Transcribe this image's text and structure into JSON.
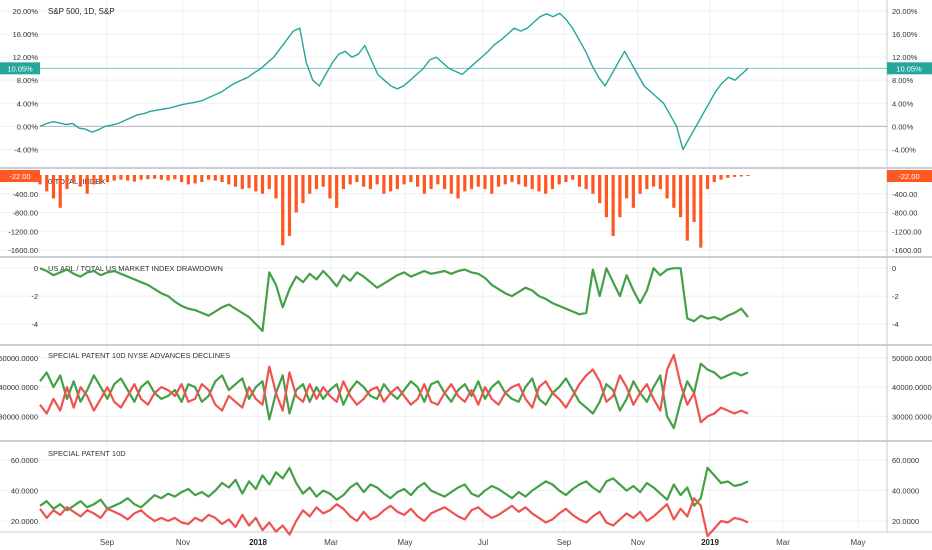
{
  "chart_data": [
    {
      "type": "line",
      "title": "S&P 500, 1D, S&P",
      "y_ticks": [
        "-4.00%",
        "0.00%",
        "4.00%",
        "8.00%",
        "12.00%",
        "16.00%",
        "20.00%"
      ],
      "last_value_tag": "10.05%",
      "ylim": [
        -6,
        20.5
      ],
      "zero_baseline": true,
      "series": [
        {
          "color": "#26a69a",
          "values": [
            0,
            0.5,
            0.8,
            0.6,
            0.3,
            0.5,
            -0.3,
            -0.5,
            -1,
            -0.6,
            0,
            0.2,
            0.5,
            1,
            1.5,
            2,
            2.2,
            2.6,
            2.8,
            3,
            3.2,
            3.5,
            3.8,
            4,
            4.2,
            4.5,
            5,
            5.5,
            6,
            6.8,
            7.5,
            8,
            8.5,
            9.3,
            10,
            11,
            12,
            13.5,
            15,
            16.5,
            17,
            11,
            8,
            7,
            9,
            11,
            12.5,
            13,
            12,
            12.5,
            14,
            11.5,
            9,
            8,
            7,
            6.5,
            7,
            8,
            9,
            10,
            11.5,
            12,
            11,
            10,
            9.5,
            9,
            10,
            11,
            12,
            13,
            14.2,
            15,
            16,
            17,
            16.5,
            17,
            18,
            19,
            19.5,
            19,
            19.6,
            18.5,
            17,
            15,
            13,
            10.5,
            8.5,
            7,
            9,
            11,
            13,
            11,
            9,
            7,
            6,
            5,
            4,
            2,
            0,
            -4,
            -2,
            0,
            2,
            4,
            6,
            7.5,
            8.5,
            8,
            9,
            10.05
          ]
        }
      ]
    },
    {
      "type": "bar",
      "title": "0-TOTAL_INDEX",
      "y_ticks": [
        "-1600.00",
        "-1200.00",
        "-800.00",
        "-400.00"
      ],
      "last_value_tag": "-22.00",
      "ylim": [
        -1600,
        0
      ],
      "series": [
        {
          "color": "#ff5722",
          "values": [
            -200,
            -350,
            -500,
            -700,
            -300,
            -150,
            -250,
            -400,
            -200,
            -180,
            -150,
            -120,
            -100,
            -120,
            -140,
            -100,
            -90,
            -80,
            -100,
            -120,
            -90,
            -150,
            -200,
            -180,
            -150,
            -100,
            -120,
            -150,
            -200,
            -250,
            -300,
            -280,
            -350,
            -400,
            -300,
            -500,
            -1500,
            -1300,
            -800,
            -600,
            -400,
            -300,
            -250,
            -500,
            -700,
            -300,
            -200,
            -150,
            -250,
            -300,
            -200,
            -400,
            -350,
            -300,
            -200,
            -150,
            -250,
            -400,
            -300,
            -200,
            -300,
            -400,
            -500,
            -350,
            -300,
            -250,
            -300,
            -400,
            -250,
            -200,
            -150,
            -200,
            -250,
            -300,
            -350,
            -400,
            -300,
            -200,
            -150,
            -100,
            -250,
            -300,
            -400,
            -600,
            -900,
            -1300,
            -900,
            -500,
            -700,
            -400,
            -300,
            -250,
            -300,
            -500,
            -700,
            -900,
            -1400,
            -1000,
            -1550,
            -300,
            -150,
            -100,
            -60,
            -40,
            -30,
            -22
          ]
        }
      ]
    },
    {
      "type": "line",
      "title": "US ADL / TOTAL US MARKET INDEX DRAWDOWN",
      "y_ticks": [
        "-4",
        "-2",
        "0"
      ],
      "ylim": [
        -5,
        0.3
      ],
      "series": [
        {
          "color": "#43a047",
          "values": [
            0,
            -0.2,
            -0.5,
            -0.3,
            -0.1,
            -0.4,
            -0.6,
            -0.3,
            -0.2,
            -0.5,
            -0.3,
            -0.2,
            -0.4,
            -0.6,
            -0.8,
            -1.0,
            -1.2,
            -1.5,
            -1.8,
            -2.0,
            -2.4,
            -2.7,
            -2.9,
            -3.0,
            -3.2,
            -3.4,
            -3.1,
            -2.8,
            -2.6,
            -2.9,
            -3.2,
            -3.5,
            -4.0,
            -4.5,
            -0.3,
            -1.2,
            -2.8,
            -1.5,
            -0.6,
            -1.0,
            -0.4,
            -0.8,
            -0.2,
            -0.7,
            -1.3,
            -0.5,
            -0.9,
            -0.3,
            -0.6,
            -1.0,
            -1.4,
            -1.1,
            -0.8,
            -0.5,
            -0.3,
            -0.6,
            -0.4,
            -0.2,
            -0.4,
            -0.3,
            -0.2,
            -0.4,
            -0.2,
            -0.1,
            -0.3,
            -0.4,
            -0.7,
            -1.2,
            -1.5,
            -1.8,
            -2.0,
            -1.7,
            -1.4,
            -1.6,
            -2.0,
            -2.2,
            -2.5,
            -2.7,
            -2.9,
            -3.1,
            -3.3,
            -3.2,
            -0.1,
            -2.0,
            0,
            -1.0,
            -2.0,
            -0.5,
            -1.6,
            -2.5,
            -1.6,
            0,
            -0.5,
            -0.1,
            0,
            0,
            -3.6,
            -3.8,
            -3.4,
            -3.6,
            -3.5,
            -3.7,
            -3.4,
            -3.2,
            -2.9,
            -3.5
          ]
        }
      ]
    },
    {
      "type": "line",
      "title": "SPECIAL PATENT 10D NYSE ADVANCES DECLINES",
      "y_ticks": [
        "30000.0000",
        "40000.0000",
        "50000.0000"
      ],
      "ylim": [
        24000,
        52000
      ],
      "series": [
        {
          "color": "#43a047",
          "values": [
            42000,
            45000,
            40000,
            44000,
            36000,
            42000,
            35000,
            39000,
            44000,
            40000,
            36000,
            41000,
            43000,
            39000,
            35000,
            40000,
            42000,
            38000,
            36000,
            37000,
            39000,
            35000,
            41000,
            40000,
            35000,
            37000,
            42000,
            44000,
            39000,
            41000,
            43000,
            36000,
            40000,
            42000,
            29000,
            38000,
            44000,
            31000,
            39000,
            41000,
            35000,
            40000,
            36000,
            39000,
            41000,
            34000,
            39000,
            42000,
            40000,
            37000,
            36000,
            41000,
            38000,
            36000,
            39000,
            42000,
            40000,
            35000,
            41000,
            42000,
            38000,
            35000,
            39000,
            41000,
            37000,
            42000,
            36000,
            40000,
            42000,
            38000,
            36000,
            35000,
            40000,
            43000,
            36000,
            34000,
            38000,
            40000,
            43000,
            39000,
            35000,
            33000,
            31000,
            35000,
            41000,
            39000,
            32000,
            36000,
            42000,
            38000,
            35000,
            40000,
            44000,
            30000,
            26000,
            35000,
            42000,
            38000,
            48000,
            46000,
            45000,
            43000,
            44000,
            45000,
            44000,
            45000
          ]
        },
        {
          "color": "#ef5350",
          "values": [
            34000,
            31000,
            36000,
            32000,
            40000,
            33000,
            40000,
            37000,
            32000,
            36000,
            40000,
            35000,
            33000,
            37000,
            41000,
            36000,
            34000,
            38000,
            40000,
            39000,
            37000,
            41000,
            35000,
            36000,
            41000,
            39000,
            34000,
            32000,
            37000,
            35000,
            33000,
            40000,
            36000,
            34000,
            47000,
            38000,
            32000,
            45000,
            37000,
            35000,
            41000,
            36000,
            40000,
            37000,
            35000,
            42000,
            37000,
            34000,
            36000,
            39000,
            40000,
            35000,
            38000,
            40000,
            37000,
            34000,
            36000,
            41000,
            35000,
            34000,
            38000,
            41000,
            37000,
            35000,
            39000,
            34000,
            40000,
            36000,
            34000,
            38000,
            40000,
            41000,
            36000,
            33000,
            40000,
            42000,
            38000,
            36000,
            33000,
            37000,
            41000,
            44000,
            46000,
            42000,
            35000,
            37000,
            44000,
            40000,
            34000,
            38000,
            41000,
            36000,
            32000,
            46000,
            51000,
            41000,
            34000,
            38000,
            28000,
            30000,
            31000,
            33000,
            32000,
            31000,
            32000,
            31000
          ]
        }
      ]
    },
    {
      "type": "line",
      "title": "SPECIAL PATENT 10D",
      "y_ticks": [
        "20.0000",
        "40.0000",
        "60.0000"
      ],
      "ylim": [
        18,
        68
      ],
      "series": [
        {
          "color": "#43a047",
          "values": [
            30,
            33,
            28,
            31,
            27,
            30,
            33,
            29,
            31,
            34,
            28,
            30,
            32,
            35,
            31,
            29,
            33,
            37,
            35,
            38,
            36,
            39,
            41,
            37,
            39,
            36,
            40,
            45,
            42,
            47,
            38,
            46,
            41,
            50,
            44,
            52,
            48,
            55,
            45,
            38,
            42,
            36,
            40,
            38,
            34,
            37,
            42,
            45,
            39,
            44,
            42,
            38,
            35,
            39,
            41,
            37,
            42,
            45,
            40,
            38,
            36,
            39,
            42,
            44,
            38,
            36,
            40,
            43,
            41,
            38,
            35,
            39,
            36,
            40,
            43,
            46,
            44,
            40,
            37,
            41,
            44,
            46,
            42,
            39,
            46,
            48,
            44,
            40,
            43,
            39,
            45,
            42,
            38,
            34,
            44,
            37,
            42,
            30,
            35,
            55,
            50,
            45,
            46,
            43,
            44,
            46
          ]
        },
        {
          "color": "#ef5350",
          "values": [
            28,
            22,
            27,
            24,
            29,
            26,
            23,
            27,
            25,
            22,
            28,
            26,
            24,
            21,
            25,
            27,
            23,
            20,
            22,
            20,
            22,
            19,
            18,
            22,
            20,
            24,
            22,
            18,
            21,
            16,
            24,
            17,
            22,
            14,
            19,
            13,
            17,
            11,
            20,
            27,
            23,
            29,
            25,
            27,
            31,
            28,
            23,
            20,
            26,
            21,
            23,
            27,
            30,
            26,
            24,
            28,
            23,
            20,
            25,
            27,
            29,
            26,
            23,
            21,
            27,
            29,
            25,
            22,
            24,
            27,
            30,
            26,
            29,
            25,
            22,
            19,
            21,
            25,
            28,
            24,
            21,
            19,
            23,
            26,
            19,
            17,
            21,
            25,
            22,
            26,
            20,
            23,
            27,
            31,
            21,
            28,
            23,
            35,
            30,
            10,
            15,
            20,
            19,
            22,
            21,
            19
          ]
        }
      ]
    }
  ],
  "x_axis": {
    "labels": [
      "Sep",
      "Nov",
      "2018",
      "Mar",
      "May",
      "Jul",
      "Sep",
      "Nov",
      "2019",
      "Mar",
      "May"
    ],
    "bold_labels": [
      "2018",
      "2019"
    ]
  }
}
